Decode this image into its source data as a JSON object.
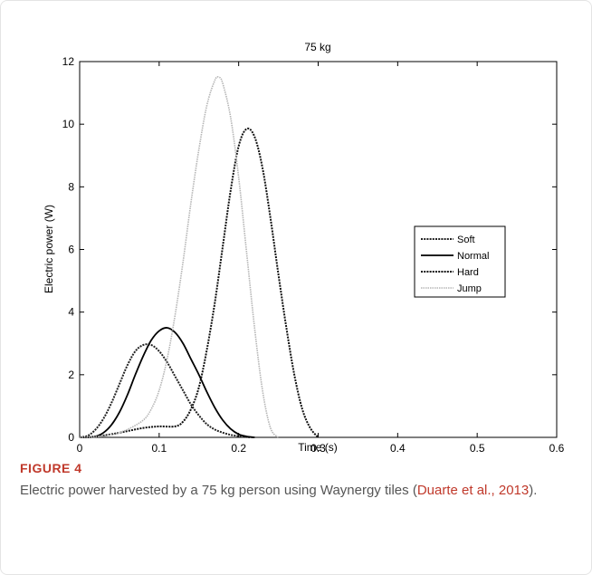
{
  "caption": {
    "label": "FIGURE 4",
    "text_before": "Electric power harvested by a 75 kg person using Waynergy tiles (",
    "citation": "Duarte et al., 2013",
    "text_after": ")."
  },
  "colors": {
    "citation": "#c0392b",
    "axis": "#000000"
  },
  "chart_data": {
    "type": "line",
    "title": "75 kg",
    "xlabel": "Time (s)",
    "ylabel": "Electric power (W)",
    "xlim": [
      0,
      0.6
    ],
    "ylim": [
      0,
      12
    ],
    "xticks": [
      0,
      0.1,
      0.2,
      0.3,
      0.4,
      0.5,
      0.6
    ],
    "xtick_labels": [
      "0",
      "0.1",
      "0.2",
      "0.3",
      "0.4",
      "0.5",
      "0.6"
    ],
    "yticks": [
      0,
      2,
      4,
      6,
      8,
      10,
      12
    ],
    "ytick_labels": [
      "0",
      "2",
      "4",
      "6",
      "8",
      "10",
      "12"
    ],
    "grid": false,
    "legend_position": "right",
    "series": [
      {
        "name": "Soft",
        "style": "dotted-dark",
        "color": "#222222",
        "x": [
          0,
          0.01,
          0.02,
          0.03,
          0.04,
          0.05,
          0.06,
          0.07,
          0.08,
          0.09,
          0.1,
          0.11,
          0.12,
          0.13,
          0.14,
          0.15,
          0.16,
          0.17,
          0.18,
          0.19,
          0.2,
          0.21,
          0.22
        ],
        "y": [
          0,
          0.05,
          0.25,
          0.6,
          1.1,
          1.7,
          2.3,
          2.75,
          2.95,
          2.95,
          2.75,
          2.4,
          1.95,
          1.5,
          1.05,
          0.7,
          0.42,
          0.25,
          0.15,
          0.08,
          0.04,
          0.01,
          0
        ]
      },
      {
        "name": "Normal",
        "style": "solid",
        "color": "#000000",
        "x": [
          0,
          0.01,
          0.02,
          0.03,
          0.04,
          0.05,
          0.06,
          0.07,
          0.08,
          0.09,
          0.1,
          0.11,
          0.12,
          0.13,
          0.14,
          0.15,
          0.16,
          0.17,
          0.18,
          0.19,
          0.2,
          0.21,
          0.22
        ],
        "y": [
          0,
          0,
          0.03,
          0.15,
          0.4,
          0.8,
          1.35,
          2.0,
          2.6,
          3.1,
          3.4,
          3.5,
          3.35,
          3.0,
          2.5,
          2.0,
          1.45,
          0.95,
          0.55,
          0.27,
          0.1,
          0.03,
          0
        ]
      },
      {
        "name": "Hard",
        "style": "dotted-dark",
        "color": "#111111",
        "x": [
          0,
          0.02,
          0.04,
          0.06,
          0.08,
          0.1,
          0.12,
          0.13,
          0.14,
          0.15,
          0.16,
          0.17,
          0.18,
          0.19,
          0.2,
          0.21,
          0.22,
          0.23,
          0.24,
          0.25,
          0.26,
          0.27,
          0.28,
          0.29,
          0.3
        ],
        "y": [
          0,
          0.03,
          0.1,
          0.2,
          0.3,
          0.35,
          0.35,
          0.5,
          0.9,
          1.6,
          2.8,
          4.3,
          6.1,
          7.9,
          9.3,
          9.85,
          9.6,
          8.6,
          7.0,
          5.2,
          3.5,
          2.0,
          0.9,
          0.3,
          0
        ]
      },
      {
        "name": "Jump",
        "style": "light",
        "color": "#b5b5b5",
        "x": [
          0,
          0.02,
          0.04,
          0.06,
          0.08,
          0.09,
          0.1,
          0.11,
          0.12,
          0.13,
          0.14,
          0.15,
          0.16,
          0.17,
          0.175,
          0.18,
          0.19,
          0.2,
          0.21,
          0.22,
          0.23,
          0.24,
          0.25
        ],
        "y": [
          0,
          0.02,
          0.08,
          0.25,
          0.55,
          0.9,
          1.5,
          2.5,
          3.9,
          5.6,
          7.5,
          9.2,
          10.6,
          11.4,
          11.5,
          11.3,
          10.2,
          8.3,
          5.9,
          3.5,
          1.5,
          0.3,
          0
        ]
      }
    ]
  }
}
